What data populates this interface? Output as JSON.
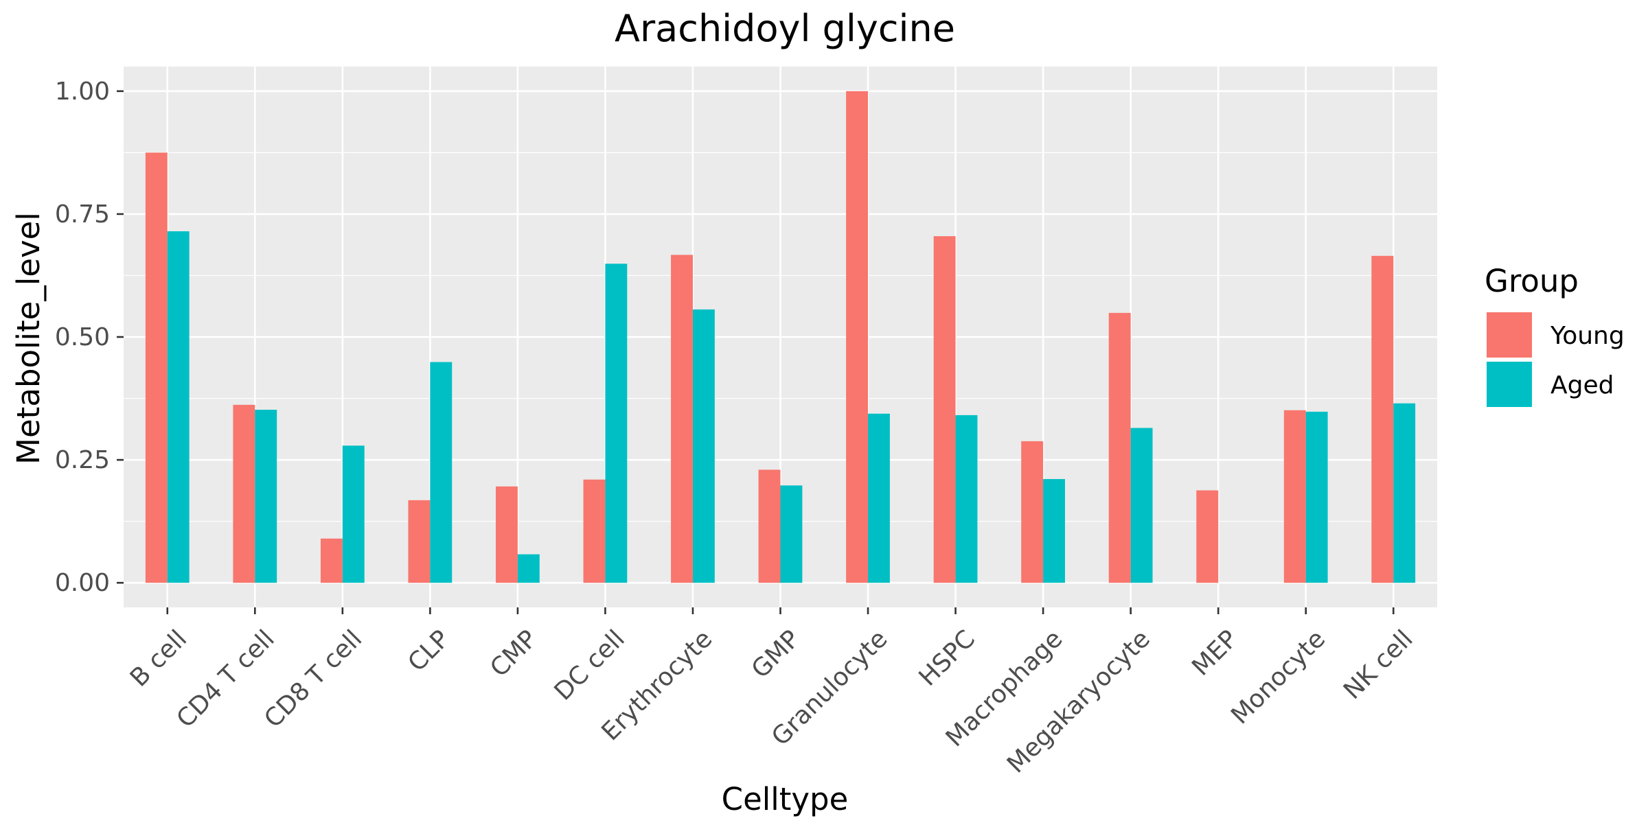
{
  "chart_data": {
    "type": "bar",
    "title": "Arachidoyl glycine",
    "xlabel": "Celltype",
    "ylabel": "Metabolite_level",
    "ylim": [
      -0.05,
      1.05
    ],
    "y_ticks": [
      "0.00",
      "0.25",
      "0.50",
      "0.75",
      "1.00"
    ],
    "y_tick_values": [
      0,
      0.25,
      0.5,
      0.75,
      1.0
    ],
    "grid": true,
    "legend": {
      "title": "Group",
      "position": "right"
    },
    "categories": [
      "B cell",
      "CD4 T cell",
      "CD8 T cell",
      "CLP",
      "CMP",
      "DC cell",
      "Erythrocyte",
      "GMP",
      "Granulocyte",
      "HSPC",
      "Macrophage",
      "Megakaryocyte",
      "MEP",
      "Monocyte",
      "NK cell"
    ],
    "series": [
      {
        "name": "Young",
        "color": "#F8766D",
        "values": [
          0.875,
          0.362,
          0.09,
          0.168,
          0.196,
          0.21,
          0.667,
          0.23,
          1.0,
          0.705,
          0.288,
          0.549,
          0.188,
          0.351,
          0.665
        ]
      },
      {
        "name": "Aged",
        "color": "#00BFC4",
        "values": [
          0.715,
          0.352,
          0.279,
          0.449,
          0.058,
          0.649,
          0.556,
          0.198,
          0.344,
          0.341,
          0.211,
          0.315,
          null,
          0.348,
          0.365
        ]
      }
    ]
  },
  "colors": {
    "panel_background": "#EBEBEB",
    "grid_major": "#FFFFFF",
    "tick_color": "#333333"
  }
}
